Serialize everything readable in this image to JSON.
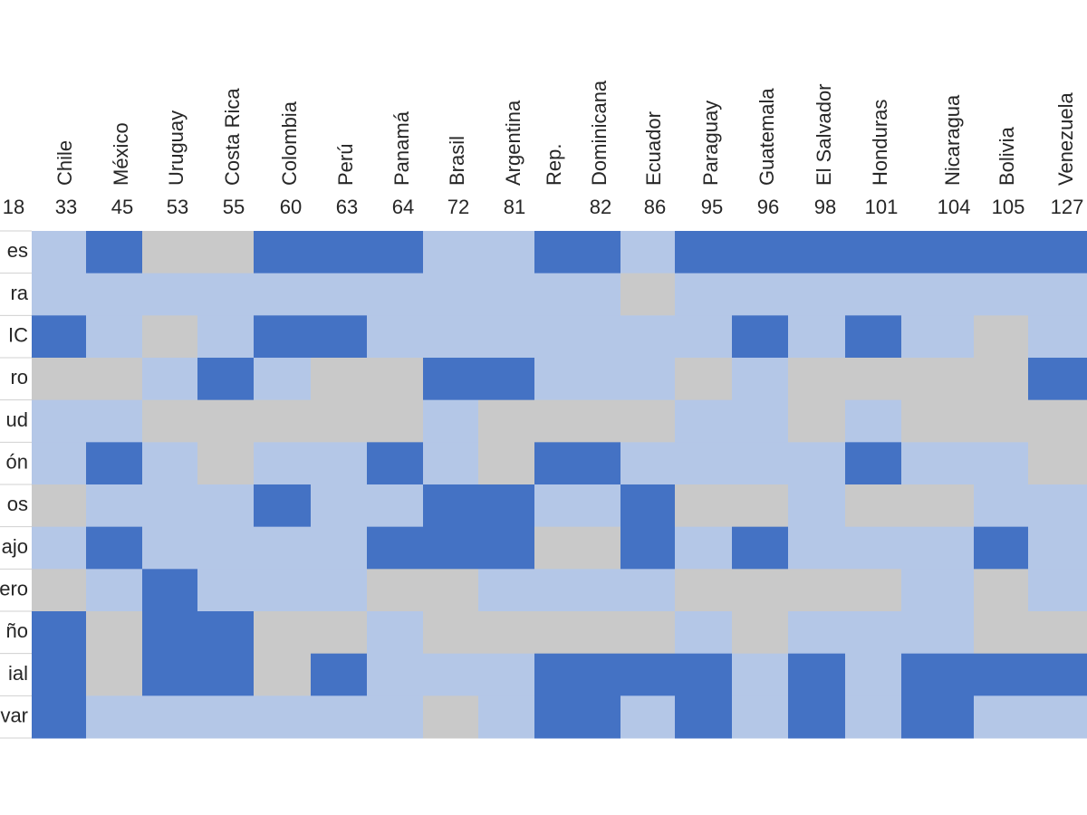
{
  "chart_data": {
    "type": "heatmap",
    "cut_column_rank": 18,
    "columns": [
      {
        "name_lines": [
          "Chile"
        ],
        "rank": 33
      },
      {
        "name_lines": [
          "México"
        ],
        "rank": 45
      },
      {
        "name_lines": [
          "Uruguay"
        ],
        "rank": 53
      },
      {
        "name_lines": [
          "Costa Rica"
        ],
        "rank": 55
      },
      {
        "name_lines": [
          "Colombia"
        ],
        "rank": 60
      },
      {
        "name_lines": [
          "Perú"
        ],
        "rank": 63
      },
      {
        "name_lines": [
          "Panamá"
        ],
        "rank": 64
      },
      {
        "name_lines": [
          "Brasil"
        ],
        "rank": 72
      },
      {
        "name_lines": [
          "Argentina"
        ],
        "rank": 81
      },
      {
        "name_lines": [
          "Rep.",
          "Dominicana"
        ],
        "rank": 82
      },
      {
        "name_lines": [
          "Ecuador"
        ],
        "rank": 86
      },
      {
        "name_lines": [
          "Paraguay"
        ],
        "rank": 95
      },
      {
        "name_lines": [
          "Guatemala"
        ],
        "rank": 96
      },
      {
        "name_lines": [
          "El Salvador"
        ],
        "rank": 98
      },
      {
        "name_lines": [
          "Honduras"
        ],
        "rank": 101
      },
      {
        "name_lines": [
          "Nicaragua"
        ],
        "rank": 104
      },
      {
        "name_lines": [
          "Bolivia"
        ],
        "rank": 105
      },
      {
        "name_lines": [
          "Venezuela"
        ],
        "rank": 127
      }
    ],
    "colors": {
      "D": "#4472c4",
      "L": "#b4c7e7",
      "G": "#c9c9c9"
    },
    "rows": [
      {
        "label": "es",
        "cells": [
          "L",
          "D",
          "G",
          "G",
          "D",
          "D",
          "D",
          "L",
          "L",
          "D",
          "L",
          "D",
          "D",
          "D",
          "D",
          "D",
          "D",
          "D"
        ]
      },
      {
        "label": "ra",
        "cells": [
          "L",
          "L",
          "L",
          "L",
          "L",
          "L",
          "L",
          "L",
          "L",
          "L",
          "G",
          "L",
          "L",
          "L",
          "L",
          "L",
          "L",
          "L"
        ]
      },
      {
        "label": "IC",
        "cells": [
          "D",
          "L",
          "G",
          "L",
          "D",
          "D",
          "L",
          "L",
          "L",
          "L",
          "L",
          "L",
          "D",
          "L",
          "D",
          "L",
          "G",
          "L"
        ]
      },
      {
        "label": "ro",
        "cells": [
          "G",
          "G",
          "L",
          "D",
          "L",
          "G",
          "G",
          "D",
          "D",
          "L",
          "L",
          "G",
          "L",
          "G",
          "G",
          "G",
          "G",
          "D"
        ]
      },
      {
        "label": "ud",
        "cells": [
          "L",
          "L",
          "G",
          "G",
          "G",
          "G",
          "G",
          "L",
          "G",
          "G",
          "G",
          "L",
          "L",
          "G",
          "L",
          "G",
          "G",
          "G"
        ]
      },
      {
        "label": "ón",
        "cells": [
          "L",
          "D",
          "L",
          "G",
          "L",
          "L",
          "D",
          "L",
          "G",
          "D",
          "L",
          "L",
          "L",
          "L",
          "D",
          "L",
          "L",
          "G"
        ]
      },
      {
        "label": "os",
        "cells": [
          "G",
          "L",
          "L",
          "L",
          "D",
          "L",
          "L",
          "D",
          "D",
          "L",
          "D",
          "G",
          "G",
          "L",
          "G",
          "G",
          "L",
          "L"
        ]
      },
      {
        "label": "ajo",
        "cells": [
          "L",
          "D",
          "L",
          "L",
          "L",
          "L",
          "D",
          "D",
          "D",
          "G",
          "D",
          "L",
          "D",
          "L",
          "L",
          "L",
          "D",
          "L"
        ]
      },
      {
        "label": "ero",
        "cells": [
          "G",
          "L",
          "D",
          "L",
          "L",
          "L",
          "G",
          "G",
          "L",
          "L",
          "L",
          "G",
          "G",
          "G",
          "G",
          "L",
          "G",
          "L"
        ]
      },
      {
        "label": "ño",
        "cells": [
          "D",
          "G",
          "D",
          "D",
          "G",
          "G",
          "L",
          "G",
          "G",
          "G",
          "G",
          "L",
          "G",
          "L",
          "L",
          "L",
          "G",
          "G"
        ]
      },
      {
        "label": "ial",
        "cells": [
          "D",
          "G",
          "D",
          "D",
          "G",
          "D",
          "L",
          "L",
          "L",
          "D",
          "D",
          "D",
          "L",
          "D",
          "L",
          "D",
          "D",
          "D"
        ]
      },
      {
        "label": "var",
        "cells": [
          "D",
          "L",
          "L",
          "L",
          "L",
          "L",
          "L",
          "G",
          "L",
          "D",
          "L",
          "D",
          "L",
          "D",
          "L",
          "D",
          "L",
          "L"
        ]
      }
    ]
  }
}
